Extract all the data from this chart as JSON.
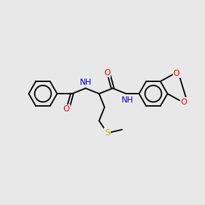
{
  "background_color": "#e8e8e8",
  "bond_color": "#000000",
  "atom_colors": {
    "O": "#ff0000",
    "N": "#0000cd",
    "S": "#ccaa00",
    "C": "#000000",
    "H": "#000000"
  },
  "figsize": [
    3.0,
    3.0
  ],
  "dpi": 100,
  "lw": 1.4,
  "fs": 8.5
}
